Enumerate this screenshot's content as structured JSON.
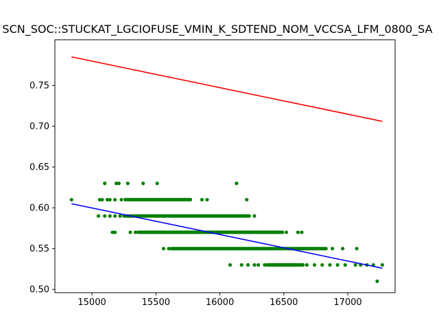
{
  "chart_data": {
    "type": "scatter",
    "title": "SCN_SOC::STUCKAT_LGCIOFUSE_VMIN_K_SDTEND_NOM_VCCSA_LFM_0800_SA",
    "xlabel": "",
    "ylabel": "",
    "xlim": [
      14710,
      17370
    ],
    "ylim": [
      0.496,
      0.806
    ],
    "xticks": [
      15000,
      15500,
      16000,
      16500,
      17000
    ],
    "xtick_labels": [
      "15000",
      "15500",
      "16000",
      "16500",
      "17000"
    ],
    "yticks": [
      0.5,
      0.55,
      0.6,
      0.65,
      0.7,
      0.75
    ],
    "ytick_labels": [
      "0.50",
      "0.55",
      "0.60",
      "0.65",
      "0.70",
      "0.75"
    ],
    "grid": false,
    "legend": "none",
    "colors": {
      "points": "#008000",
      "upper_line": "#ff0000",
      "fit_line": "#0000ff"
    },
    "series": [
      {
        "type": "scatter",
        "points": [
          [
            14840,
            0.61
          ],
          [
            15100,
            0.63
          ],
          [
            15190,
            0.63
          ],
          [
            15210,
            0.63
          ],
          [
            15280,
            0.63
          ],
          [
            15400,
            0.63
          ],
          [
            15510,
            0.63
          ],
          [
            16130,
            0.63
          ],
          [
            15060,
            0.61
          ],
          [
            15080,
            0.61
          ],
          [
            15120,
            0.61
          ],
          [
            15140,
            0.61
          ],
          [
            15180,
            0.61
          ],
          [
            15230,
            0.61
          ],
          [
            16210,
            0.61
          ],
          [
            15860,
            0.61
          ],
          [
            15900,
            0.61
          ],
          [
            15050,
            0.59
          ],
          [
            15100,
            0.59
          ],
          [
            15140,
            0.59
          ],
          [
            15180,
            0.59
          ],
          [
            15220,
            0.59
          ],
          [
            16270,
            0.59
          ],
          [
            16180,
            0.59
          ],
          [
            15160,
            0.57
          ],
          [
            15180,
            0.57
          ],
          [
            15300,
            0.57
          ],
          [
            15340,
            0.57
          ],
          [
            16520,
            0.57
          ],
          [
            16610,
            0.57
          ],
          [
            16640,
            0.57
          ],
          [
            15560,
            0.55
          ],
          [
            15600,
            0.55
          ],
          [
            16880,
            0.55
          ],
          [
            16960,
            0.55
          ],
          [
            17070,
            0.55
          ],
          [
            16080,
            0.53
          ],
          [
            16170,
            0.53
          ],
          [
            16220,
            0.53
          ],
          [
            16270,
            0.53
          ],
          [
            16300,
            0.53
          ],
          [
            16350,
            0.53
          ],
          [
            16400,
            0.53
          ],
          [
            16460,
            0.53
          ],
          [
            16500,
            0.53
          ],
          [
            16560,
            0.53
          ],
          [
            16620,
            0.53
          ],
          [
            16680,
            0.53
          ],
          [
            16740,
            0.53
          ],
          [
            16800,
            0.53
          ],
          [
            16860,
            0.53
          ],
          [
            16920,
            0.53
          ],
          [
            16980,
            0.53
          ],
          [
            17060,
            0.53
          ],
          [
            17100,
            0.53
          ],
          [
            17150,
            0.53
          ],
          [
            17200,
            0.53
          ],
          [
            17270,
            0.53
          ],
          [
            17230,
            0.51
          ]
        ],
        "bands": [
          {
            "y": 0.61,
            "x_from": 15260,
            "x_to": 15770
          },
          {
            "y": 0.59,
            "x_from": 15250,
            "x_to": 16230
          },
          {
            "y": 0.57,
            "x_from": 15360,
            "x_to": 16490
          },
          {
            "y": 0.55,
            "x_from": 15620,
            "x_to": 16830
          },
          {
            "y": 0.53,
            "x_from": 16370,
            "x_to": 16650
          }
        ]
      },
      {
        "type": "line",
        "x": [
          14840,
          17270
        ],
        "y": [
          0.785,
          0.706
        ]
      },
      {
        "type": "line",
        "x": [
          14840,
          17270
        ],
        "y": [
          0.605,
          0.526
        ]
      }
    ]
  }
}
